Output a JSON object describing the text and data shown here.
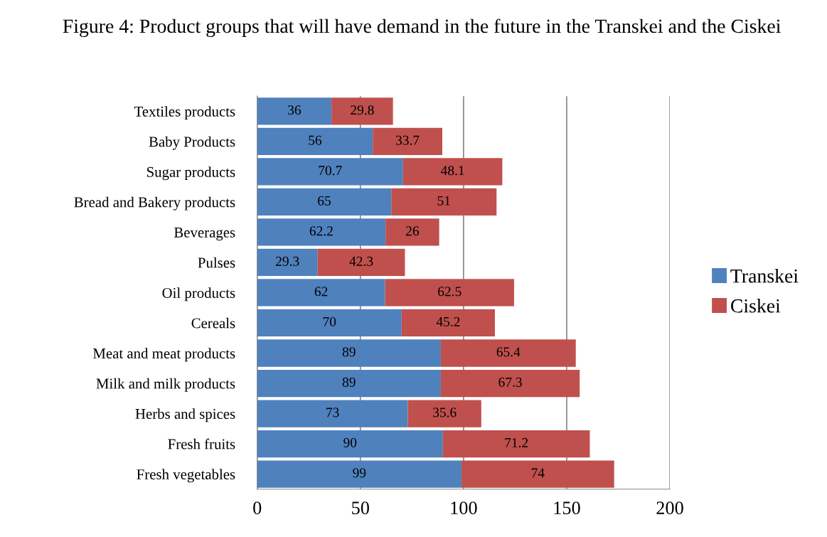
{
  "chart_data": {
    "type": "bar",
    "orientation": "horizontal",
    "stacked": true,
    "title": "Figure 4: Product groups that will have demand in the future in the Transkei and the Ciskei",
    "categories": [
      "Textiles products",
      "Baby Products",
      "Sugar products",
      "Bread and Bakery products",
      "Beverages",
      "Pulses",
      "Oil products",
      "Cereals",
      "Meat and meat products",
      "Milk and milk products",
      "Herbs and spices",
      "Fresh fruits",
      "Fresh vegetables"
    ],
    "series": [
      {
        "name": "Transkei",
        "color": "#4f81bd",
        "values": [
          36,
          56,
          70.7,
          65,
          62.2,
          29.3,
          62,
          70,
          89,
          89,
          73,
          90,
          99
        ]
      },
      {
        "name": "Ciskei",
        "color": "#c0504d",
        "values": [
          29.8,
          33.7,
          48.1,
          51,
          26,
          42.3,
          62.5,
          45.2,
          65.4,
          67.3,
          35.6,
          71.2,
          74
        ]
      }
    ],
    "xlim": [
      0,
      200
    ],
    "xticks": [
      0,
      50,
      100,
      150,
      200
    ],
    "grid": "x",
    "legend": "right",
    "data_labels": true
  }
}
